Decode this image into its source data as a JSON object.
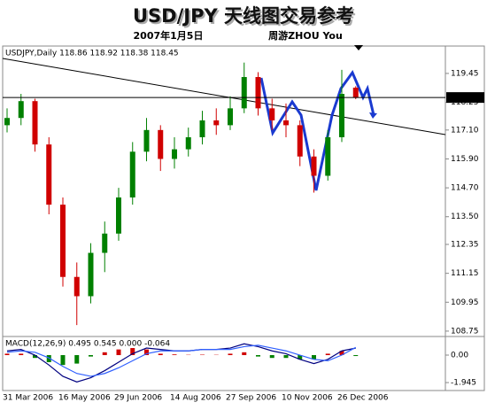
{
  "chart_data": [
    {
      "type": "candlestick",
      "title": "USD/JPY 天线图交易参考",
      "subtitle": "2007年1月5日",
      "author": "周游ZHOU You",
      "header": "USDJPY,Daily 118.86 118.92 118.38 118.45",
      "categories": [
        "31 Mar 2006",
        null,
        null,
        null,
        "16 May 2006",
        null,
        null,
        null,
        "29 Jun 2006",
        null,
        null,
        null,
        "14 Aug 2006",
        null,
        null,
        null,
        "27 Sep 2006",
        null,
        null,
        null,
        "10 Nov 2006",
        null,
        null,
        null,
        "26 Dec 2006",
        null
      ],
      "open": [
        117.3,
        117.6,
        118.3,
        116.5,
        114.0,
        111.0,
        110.2,
        112.0,
        112.8,
        114.3,
        116.2,
        117.1,
        115.9,
        116.3,
        116.8,
        117.5,
        117.3,
        118.0,
        119.3,
        118.0,
        117.5,
        117.3,
        116.0,
        115.2,
        116.8,
        118.86
      ],
      "high": [
        118.0,
        118.6,
        118.4,
        116.8,
        114.3,
        111.6,
        112.4,
        113.3,
        114.7,
        116.6,
        117.6,
        117.3,
        116.8,
        117.2,
        117.9,
        118.0,
        118.5,
        119.9,
        119.5,
        118.4,
        118.2,
        117.5,
        116.3,
        117.1,
        119.6,
        118.92
      ],
      "low": [
        117.0,
        117.3,
        116.2,
        113.6,
        110.6,
        109.0,
        109.9,
        111.2,
        112.5,
        114.0,
        115.8,
        115.4,
        115.5,
        116.0,
        116.5,
        116.9,
        117.1,
        117.8,
        117.7,
        117.1,
        116.8,
        115.6,
        114.5,
        115.0,
        116.6,
        118.38
      ],
      "close": [
        117.6,
        118.3,
        116.5,
        114.0,
        111.0,
        110.2,
        112.0,
        112.8,
        114.3,
        116.2,
        117.1,
        115.9,
        116.3,
        116.8,
        117.5,
        117.3,
        118.0,
        119.3,
        118.0,
        117.5,
        117.3,
        116.0,
        115.2,
        116.8,
        118.6,
        118.45
      ],
      "last_price": 118.45,
      "up_color": "#008000",
      "down_color": "#d00000",
      "ylim": [
        108.6,
        120.55
      ],
      "yticks": [
        119.45,
        118.25,
        {
          "value": 117.1,
          "label": "117.10"
        },
        {
          "value": 115.9,
          "label": "115.90"
        },
        {
          "value": 114.7,
          "label": "114.70"
        },
        {
          "value": 113.5,
          "label": "113.50"
        },
        112.35,
        111.15,
        109.95,
        108.75
      ]
    },
    {
      "type": "macd",
      "header": "MACD(12,26,9) 0.495 0.545 0.000 -0.064",
      "series": [
        {
          "color": "#000080",
          "values": [
            0.3,
            0.4,
            0.0,
            -0.7,
            -1.5,
            -1.9,
            -1.6,
            -1.1,
            -0.5,
            0.1,
            0.5,
            0.4,
            0.3,
            0.3,
            0.4,
            0.4,
            0.5,
            0.8,
            0.6,
            0.3,
            0.1,
            -0.3,
            -0.6,
            -0.3,
            0.3,
            0.495
          ]
        },
        {
          "color": "#3060ff",
          "values": [
            0.2,
            0.3,
            0.2,
            -0.2,
            -0.8,
            -1.3,
            -1.5,
            -1.3,
            -0.9,
            -0.4,
            0.1,
            0.3,
            0.3,
            0.3,
            0.4,
            0.4,
            0.4,
            0.6,
            0.7,
            0.5,
            0.3,
            0.0,
            -0.3,
            -0.4,
            0.0,
            0.545
          ]
        }
      ],
      "histogram": [
        0.1,
        0.1,
        -0.2,
        -0.5,
        -0.7,
        -0.6,
        -0.1,
        0.2,
        0.4,
        0.5,
        0.4,
        0.1,
        0.05,
        0.02,
        0.03,
        0.02,
        0.1,
        0.2,
        -0.1,
        -0.2,
        -0.2,
        -0.3,
        -0.3,
        0.1,
        0.3,
        -0.064
      ],
      "up_color": "#d00000",
      "down_color": "#008000",
      "ylim": [
        -2.32,
        1.13
      ],
      "yticks": [
        {
          "value": 0,
          "label": "0.00"
        },
        -1.945
      ]
    }
  ]
}
